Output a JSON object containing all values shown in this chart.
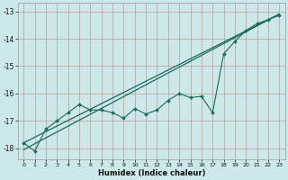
{
  "xlabel": "Humidex (Indice chaleur)",
  "background_color": "#cce8e8",
  "grid_color": "#bf9999",
  "line_color": "#1a6b5a",
  "x_data": [
    0,
    1,
    2,
    3,
    4,
    5,
    6,
    7,
    8,
    9,
    10,
    11,
    12,
    13,
    14,
    15,
    16,
    17,
    18,
    19,
    20,
    21,
    22,
    23
  ],
  "y_main": [
    -17.8,
    -18.1,
    -17.3,
    -17.0,
    -16.7,
    -16.4,
    -16.6,
    -16.6,
    -16.7,
    -16.9,
    -16.55,
    -16.75,
    -16.6,
    -16.25,
    -16.0,
    -16.15,
    -16.1,
    -16.7,
    -14.55,
    -14.1,
    -13.7,
    -13.45,
    -13.3,
    -13.15
  ],
  "line1_x": [
    0,
    23
  ],
  "line1_y": [
    -17.8,
    -13.1
  ],
  "line2_x": [
    0,
    23
  ],
  "line2_y": [
    -18.05,
    -13.1
  ],
  "ylim": [
    -18.4,
    -12.7
  ],
  "xlim": [
    -0.5,
    23.5
  ],
  "yticks": [
    -18,
    -17,
    -16,
    -15,
    -14,
    -13
  ],
  "xticks": [
    0,
    1,
    2,
    3,
    4,
    5,
    6,
    7,
    8,
    9,
    10,
    11,
    12,
    13,
    14,
    15,
    16,
    17,
    18,
    19,
    20,
    21,
    22,
    23
  ]
}
